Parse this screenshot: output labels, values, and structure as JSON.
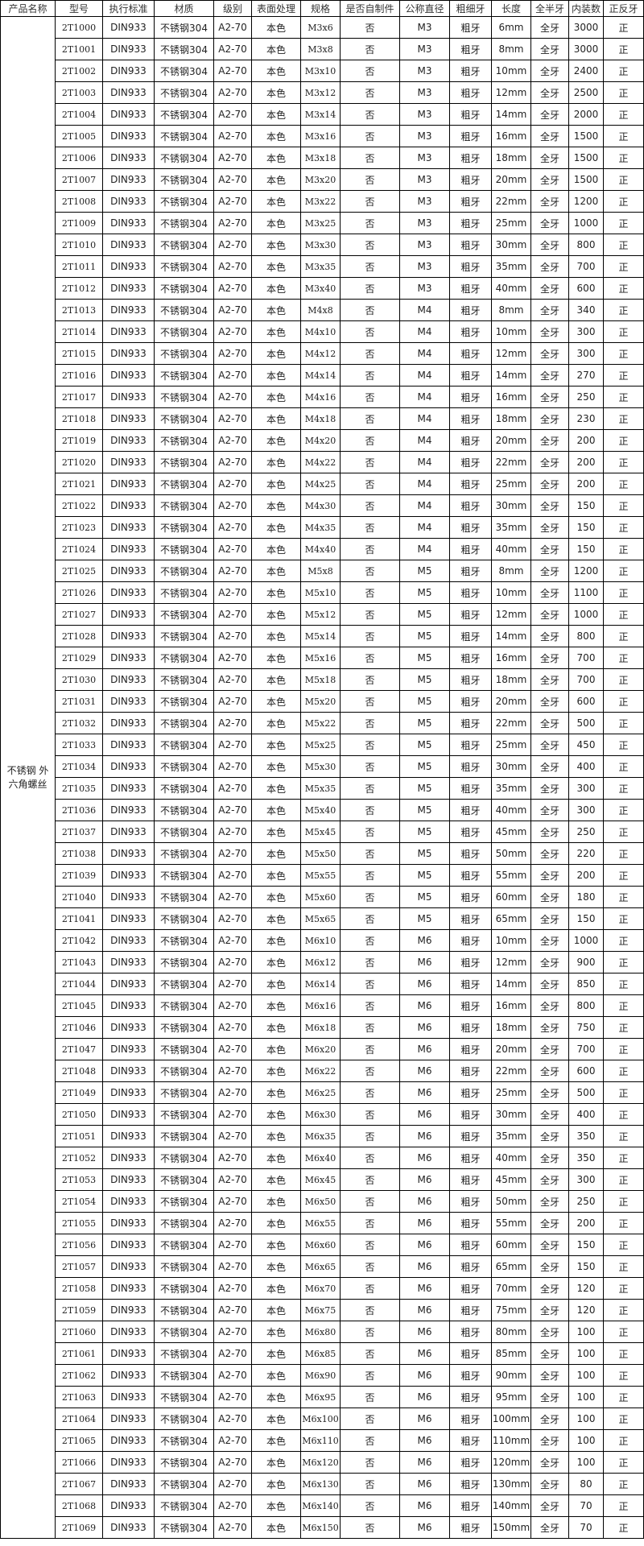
{
  "table": {
    "header": [
      "产品名称",
      "型号",
      "执行标准",
      "材质",
      "级别",
      "表面处理",
      "规格",
      "是否自制件",
      "公称直径",
      "粗细牙",
      "长度",
      "全半牙",
      "内装数",
      "正反牙"
    ],
    "category": "不锈钢 外六角螺丝",
    "rows": [
      [
        "2T1000",
        "DIN933",
        "不锈钢304",
        "A2-70",
        "本色",
        "M3x6",
        "否",
        "M3",
        "粗牙",
        "6mm",
        "全牙",
        "3000",
        "正"
      ],
      [
        "2T1001",
        "DIN933",
        "不锈钢304",
        "A2-70",
        "本色",
        "M3x8",
        "否",
        "M3",
        "粗牙",
        "8mm",
        "全牙",
        "3000",
        "正"
      ],
      [
        "2T1002",
        "DIN933",
        "不锈钢304",
        "A2-70",
        "本色",
        "M3x10",
        "否",
        "M3",
        "粗牙",
        "10mm",
        "全牙",
        "2400",
        "正"
      ],
      [
        "2T1003",
        "DIN933",
        "不锈钢304",
        "A2-70",
        "本色",
        "M3x12",
        "否",
        "M3",
        "粗牙",
        "12mm",
        "全牙",
        "2500",
        "正"
      ],
      [
        "2T1004",
        "DIN933",
        "不锈钢304",
        "A2-70",
        "本色",
        "M3x14",
        "否",
        "M3",
        "粗牙",
        "14mm",
        "全牙",
        "2000",
        "正"
      ],
      [
        "2T1005",
        "DIN933",
        "不锈钢304",
        "A2-70",
        "本色",
        "M3x16",
        "否",
        "M3",
        "粗牙",
        "16mm",
        "全牙",
        "1500",
        "正"
      ],
      [
        "2T1006",
        "DIN933",
        "不锈钢304",
        "A2-70",
        "本色",
        "M3x18",
        "否",
        "M3",
        "粗牙",
        "18mm",
        "全牙",
        "1500",
        "正"
      ],
      [
        "2T1007",
        "DIN933",
        "不锈钢304",
        "A2-70",
        "本色",
        "M3x20",
        "否",
        "M3",
        "粗牙",
        "20mm",
        "全牙",
        "1500",
        "正"
      ],
      [
        "2T1008",
        "DIN933",
        "不锈钢304",
        "A2-70",
        "本色",
        "M3x22",
        "否",
        "M3",
        "粗牙",
        "22mm",
        "全牙",
        "1200",
        "正"
      ],
      [
        "2T1009",
        "DIN933",
        "不锈钢304",
        "A2-70",
        "本色",
        "M3x25",
        "否",
        "M3",
        "粗牙",
        "25mm",
        "全牙",
        "1000",
        "正"
      ],
      [
        "2T1010",
        "DIN933",
        "不锈钢304",
        "A2-70",
        "本色",
        "M3x30",
        "否",
        "M3",
        "粗牙",
        "30mm",
        "全牙",
        "800",
        "正"
      ],
      [
        "2T1011",
        "DIN933",
        "不锈钢304",
        "A2-70",
        "本色",
        "M3x35",
        "否",
        "M3",
        "粗牙",
        "35mm",
        "全牙",
        "700",
        "正"
      ],
      [
        "2T1012",
        "DIN933",
        "不锈钢304",
        "A2-70",
        "本色",
        "M3x40",
        "否",
        "M3",
        "粗牙",
        "40mm",
        "全牙",
        "600",
        "正"
      ],
      [
        "2T1013",
        "DIN933",
        "不锈钢304",
        "A2-70",
        "本色",
        "M4x8",
        "否",
        "M4",
        "粗牙",
        "8mm",
        "全牙",
        "340",
        "正"
      ],
      [
        "2T1014",
        "DIN933",
        "不锈钢304",
        "A2-70",
        "本色",
        "M4x10",
        "否",
        "M4",
        "粗牙",
        "10mm",
        "全牙",
        "300",
        "正"
      ],
      [
        "2T1015",
        "DIN933",
        "不锈钢304",
        "A2-70",
        "本色",
        "M4x12",
        "否",
        "M4",
        "粗牙",
        "12mm",
        "全牙",
        "300",
        "正"
      ],
      [
        "2T1016",
        "DIN933",
        "不锈钢304",
        "A2-70",
        "本色",
        "M4x14",
        "否",
        "M4",
        "粗牙",
        "14mm",
        "全牙",
        "270",
        "正"
      ],
      [
        "2T1017",
        "DIN933",
        "不锈钢304",
        "A2-70",
        "本色",
        "M4x16",
        "否",
        "M4",
        "粗牙",
        "16mm",
        "全牙",
        "250",
        "正"
      ],
      [
        "2T1018",
        "DIN933",
        "不锈钢304",
        "A2-70",
        "本色",
        "M4x18",
        "否",
        "M4",
        "粗牙",
        "18mm",
        "全牙",
        "230",
        "正"
      ],
      [
        "2T1019",
        "DIN933",
        "不锈钢304",
        "A2-70",
        "本色",
        "M4x20",
        "否",
        "M4",
        "粗牙",
        "20mm",
        "全牙",
        "200",
        "正"
      ],
      [
        "2T1020",
        "DIN933",
        "不锈钢304",
        "A2-70",
        "本色",
        "M4x22",
        "否",
        "M4",
        "粗牙",
        "22mm",
        "全牙",
        "200",
        "正"
      ],
      [
        "2T1021",
        "DIN933",
        "不锈钢304",
        "A2-70",
        "本色",
        "M4x25",
        "否",
        "M4",
        "粗牙",
        "25mm",
        "全牙",
        "200",
        "正"
      ],
      [
        "2T1022",
        "DIN933",
        "不锈钢304",
        "A2-70",
        "本色",
        "M4x30",
        "否",
        "M4",
        "粗牙",
        "30mm",
        "全牙",
        "150",
        "正"
      ],
      [
        "2T1023",
        "DIN933",
        "不锈钢304",
        "A2-70",
        "本色",
        "M4x35",
        "否",
        "M4",
        "粗牙",
        "35mm",
        "全牙",
        "150",
        "正"
      ],
      [
        "2T1024",
        "DIN933",
        "不锈钢304",
        "A2-70",
        "本色",
        "M4x40",
        "否",
        "M4",
        "粗牙",
        "40mm",
        "全牙",
        "150",
        "正"
      ],
      [
        "2T1025",
        "DIN933",
        "不锈钢304",
        "A2-70",
        "本色",
        "M5x8",
        "否",
        "M5",
        "粗牙",
        "8mm",
        "全牙",
        "1200",
        "正"
      ],
      [
        "2T1026",
        "DIN933",
        "不锈钢304",
        "A2-70",
        "本色",
        "M5x10",
        "否",
        "M5",
        "粗牙",
        "10mm",
        "全牙",
        "1100",
        "正"
      ],
      [
        "2T1027",
        "DIN933",
        "不锈钢304",
        "A2-70",
        "本色",
        "M5x12",
        "否",
        "M5",
        "粗牙",
        "12mm",
        "全牙",
        "1000",
        "正"
      ],
      [
        "2T1028",
        "DIN933",
        "不锈钢304",
        "A2-70",
        "本色",
        "M5x14",
        "否",
        "M5",
        "粗牙",
        "14mm",
        "全牙",
        "800",
        "正"
      ],
      [
        "2T1029",
        "DIN933",
        "不锈钢304",
        "A2-70",
        "本色",
        "M5x16",
        "否",
        "M5",
        "粗牙",
        "16mm",
        "全牙",
        "700",
        "正"
      ],
      [
        "2T1030",
        "DIN933",
        "不锈钢304",
        "A2-70",
        "本色",
        "M5x18",
        "否",
        "M5",
        "粗牙",
        "18mm",
        "全牙",
        "700",
        "正"
      ],
      [
        "2T1031",
        "DIN933",
        "不锈钢304",
        "A2-70",
        "本色",
        "M5x20",
        "否",
        "M5",
        "粗牙",
        "20mm",
        "全牙",
        "600",
        "正"
      ],
      [
        "2T1032",
        "DIN933",
        "不锈钢304",
        "A2-70",
        "本色",
        "M5x22",
        "否",
        "M5",
        "粗牙",
        "22mm",
        "全牙",
        "500",
        "正"
      ],
      [
        "2T1033",
        "DIN933",
        "不锈钢304",
        "A2-70",
        "本色",
        "M5x25",
        "否",
        "M5",
        "粗牙",
        "25mm",
        "全牙",
        "450",
        "正"
      ],
      [
        "2T1034",
        "DIN933",
        "不锈钢304",
        "A2-70",
        "本色",
        "M5x30",
        "否",
        "M5",
        "粗牙",
        "30mm",
        "全牙",
        "400",
        "正"
      ],
      [
        "2T1035",
        "DIN933",
        "不锈钢304",
        "A2-70",
        "本色",
        "M5x35",
        "否",
        "M5",
        "粗牙",
        "35mm",
        "全牙",
        "300",
        "正"
      ],
      [
        "2T1036",
        "DIN933",
        "不锈钢304",
        "A2-70",
        "本色",
        "M5x40",
        "否",
        "M5",
        "粗牙",
        "40mm",
        "全牙",
        "300",
        "正"
      ],
      [
        "2T1037",
        "DIN933",
        "不锈钢304",
        "A2-70",
        "本色",
        "M5x45",
        "否",
        "M5",
        "粗牙",
        "45mm",
        "全牙",
        "250",
        "正"
      ],
      [
        "2T1038",
        "DIN933",
        "不锈钢304",
        "A2-70",
        "本色",
        "M5x50",
        "否",
        "M5",
        "粗牙",
        "50mm",
        "全牙",
        "220",
        "正"
      ],
      [
        "2T1039",
        "DIN933",
        "不锈钢304",
        "A2-70",
        "本色",
        "M5x55",
        "否",
        "M5",
        "粗牙",
        "55mm",
        "全牙",
        "200",
        "正"
      ],
      [
        "2T1040",
        "DIN933",
        "不锈钢304",
        "A2-70",
        "本色",
        "M5x60",
        "否",
        "M5",
        "粗牙",
        "60mm",
        "全牙",
        "180",
        "正"
      ],
      [
        "2T1041",
        "DIN933",
        "不锈钢304",
        "A2-70",
        "本色",
        "M5x65",
        "否",
        "M5",
        "粗牙",
        "65mm",
        "全牙",
        "150",
        "正"
      ],
      [
        "2T1042",
        "DIN933",
        "不锈钢304",
        "A2-70",
        "本色",
        "M6x10",
        "否",
        "M6",
        "粗牙",
        "10mm",
        "全牙",
        "1000",
        "正"
      ],
      [
        "2T1043",
        "DIN933",
        "不锈钢304",
        "A2-70",
        "本色",
        "M6x12",
        "否",
        "M6",
        "粗牙",
        "12mm",
        "全牙",
        "900",
        "正"
      ],
      [
        "2T1044",
        "DIN933",
        "不锈钢304",
        "A2-70",
        "本色",
        "M6x14",
        "否",
        "M6",
        "粗牙",
        "14mm",
        "全牙",
        "850",
        "正"
      ],
      [
        "2T1045",
        "DIN933",
        "不锈钢304",
        "A2-70",
        "本色",
        "M6x16",
        "否",
        "M6",
        "粗牙",
        "16mm",
        "全牙",
        "800",
        "正"
      ],
      [
        "2T1046",
        "DIN933",
        "不锈钢304",
        "A2-70",
        "本色",
        "M6x18",
        "否",
        "M6",
        "粗牙",
        "18mm",
        "全牙",
        "750",
        "正"
      ],
      [
        "2T1047",
        "DIN933",
        "不锈钢304",
        "A2-70",
        "本色",
        "M6x20",
        "否",
        "M6",
        "粗牙",
        "20mm",
        "全牙",
        "700",
        "正"
      ],
      [
        "2T1048",
        "DIN933",
        "不锈钢304",
        "A2-70",
        "本色",
        "M6x22",
        "否",
        "M6",
        "粗牙",
        "22mm",
        "全牙",
        "600",
        "正"
      ],
      [
        "2T1049",
        "DIN933",
        "不锈钢304",
        "A2-70",
        "本色",
        "M6x25",
        "否",
        "M6",
        "粗牙",
        "25mm",
        "全牙",
        "500",
        "正"
      ],
      [
        "2T1050",
        "DIN933",
        "不锈钢304",
        "A2-70",
        "本色",
        "M6x30",
        "否",
        "M6",
        "粗牙",
        "30mm",
        "全牙",
        "400",
        "正"
      ],
      [
        "2T1051",
        "DIN933",
        "不锈钢304",
        "A2-70",
        "本色",
        "M6x35",
        "否",
        "M6",
        "粗牙",
        "35mm",
        "全牙",
        "350",
        "正"
      ],
      [
        "2T1052",
        "DIN933",
        "不锈钢304",
        "A2-70",
        "本色",
        "M6x40",
        "否",
        "M6",
        "粗牙",
        "40mm",
        "全牙",
        "350",
        "正"
      ],
      [
        "2T1053",
        "DIN933",
        "不锈钢304",
        "A2-70",
        "本色",
        "M6x45",
        "否",
        "M6",
        "粗牙",
        "45mm",
        "全牙",
        "300",
        "正"
      ],
      [
        "2T1054",
        "DIN933",
        "不锈钢304",
        "A2-70",
        "本色",
        "M6x50",
        "否",
        "M6",
        "粗牙",
        "50mm",
        "全牙",
        "250",
        "正"
      ],
      [
        "2T1055",
        "DIN933",
        "不锈钢304",
        "A2-70",
        "本色",
        "M6x55",
        "否",
        "M6",
        "粗牙",
        "55mm",
        "全牙",
        "200",
        "正"
      ],
      [
        "2T1056",
        "DIN933",
        "不锈钢304",
        "A2-70",
        "本色",
        "M6x60",
        "否",
        "M6",
        "粗牙",
        "60mm",
        "全牙",
        "150",
        "正"
      ],
      [
        "2T1057",
        "DIN933",
        "不锈钢304",
        "A2-70",
        "本色",
        "M6x65",
        "否",
        "M6",
        "粗牙",
        "65mm",
        "全牙",
        "150",
        "正"
      ],
      [
        "2T1058",
        "DIN933",
        "不锈钢304",
        "A2-70",
        "本色",
        "M6x70",
        "否",
        "M6",
        "粗牙",
        "70mm",
        "全牙",
        "120",
        "正"
      ],
      [
        "2T1059",
        "DIN933",
        "不锈钢304",
        "A2-70",
        "本色",
        "M6x75",
        "否",
        "M6",
        "粗牙",
        "75mm",
        "全牙",
        "120",
        "正"
      ],
      [
        "2T1060",
        "DIN933",
        "不锈钢304",
        "A2-70",
        "本色",
        "M6x80",
        "否",
        "M6",
        "粗牙",
        "80mm",
        "全牙",
        "100",
        "正"
      ],
      [
        "2T1061",
        "DIN933",
        "不锈钢304",
        "A2-70",
        "本色",
        "M6x85",
        "否",
        "M6",
        "粗牙",
        "85mm",
        "全牙",
        "100",
        "正"
      ],
      [
        "2T1062",
        "DIN933",
        "不锈钢304",
        "A2-70",
        "本色",
        "M6x90",
        "否",
        "M6",
        "粗牙",
        "90mm",
        "全牙",
        "100",
        "正"
      ],
      [
        "2T1063",
        "DIN933",
        "不锈钢304",
        "A2-70",
        "本色",
        "M6x95",
        "否",
        "M6",
        "粗牙",
        "95mm",
        "全牙",
        "100",
        "正"
      ],
      [
        "2T1064",
        "DIN933",
        "不锈钢304",
        "A2-70",
        "本色",
        "M6x100",
        "否",
        "M6",
        "粗牙",
        "100mm",
        "全牙",
        "100",
        "正"
      ],
      [
        "2T1065",
        "DIN933",
        "不锈钢304",
        "A2-70",
        "本色",
        "M6x110",
        "否",
        "M6",
        "粗牙",
        "110mm",
        "全牙",
        "100",
        "正"
      ],
      [
        "2T1066",
        "DIN933",
        "不锈钢304",
        "A2-70",
        "本色",
        "M6x120",
        "否",
        "M6",
        "粗牙",
        "120mm",
        "全牙",
        "100",
        "正"
      ],
      [
        "2T1067",
        "DIN933",
        "不锈钢304",
        "A2-70",
        "本色",
        "M6x130",
        "否",
        "M6",
        "粗牙",
        "130mm",
        "全牙",
        "80",
        "正"
      ],
      [
        "2T1068",
        "DIN933",
        "不锈钢304",
        "A2-70",
        "本色",
        "M6x140",
        "否",
        "M6",
        "粗牙",
        "140mm",
        "全牙",
        "70",
        "正"
      ],
      [
        "2T1069",
        "DIN933",
        "不锈钢304",
        "A2-70",
        "本色",
        "M6x150",
        "否",
        "M6",
        "粗牙",
        "150mm",
        "全牙",
        "70",
        "正"
      ]
    ]
  }
}
